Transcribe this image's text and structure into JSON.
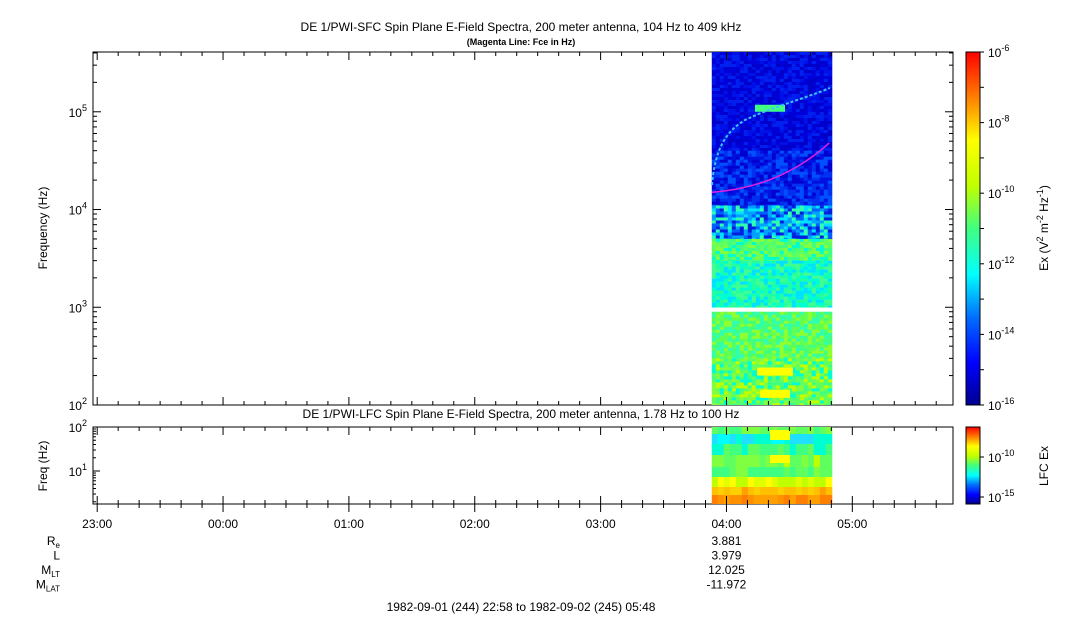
{
  "chart_data": [
    {
      "type": "heatmap",
      "title": "DE 1/PWI-SFC  Spin Plane E-Field Spectra, 200 meter antenna, 104 Hz to 409 kHz",
      "subtitle": "(Magenta Line: Fce in Hz)",
      "ylabel": "Frequency (Hz)",
      "yscale": "log",
      "ylim": [
        100,
        409000
      ],
      "ytick_exponents": [
        "2",
        "3",
        "4",
        "5"
      ],
      "colorbar_label": "Ex (V",
      "colorbar_label_sup1": "2",
      "colorbar_label_mid": " m",
      "colorbar_label_sup2": "-2",
      "colorbar_label_mid2": " Hz",
      "colorbar_label_sup3": "-1",
      "colorbar_label_end": ")",
      "colorbar_scale": "log",
      "colorbar_range_exponents": [
        -16,
        -6
      ],
      "colorbar_tick_exponents": [
        "-6",
        "-8",
        "-10",
        "-12",
        "-14",
        "-16"
      ],
      "data_time_range": [
        "03:53",
        "04:49"
      ],
      "gap_frequency_range_hz": [
        1000,
        900
      ],
      "fce_line": {
        "start_time": "03:53",
        "start_hz": 15000,
        "end_time": "04:49",
        "end_hz": 48000,
        "color": "#e020e0"
      }
    },
    {
      "type": "heatmap",
      "title": "DE 1/PWI-LFC  Spin Plane E-Field Spectra, 200 meter antenna, 1.78 Hz to 100 Hz",
      "ylabel": "Freq (Hz)",
      "yscale": "log",
      "ylim": [
        1.78,
        100
      ],
      "ytick_labels": [
        {
          "base": "10",
          "exp": "2"
        },
        {
          "base": "10",
          "exp": "1"
        }
      ],
      "colorbar_label": "LFC Ex",
      "colorbar_tick_exponents": [
        "-10",
        "-15"
      ],
      "data_time_range": [
        "03:53",
        "04:49"
      ]
    }
  ],
  "x_axis": {
    "tick_labels": [
      "23:00",
      "00:00",
      "01:00",
      "02:00",
      "03:00",
      "04:00",
      "05:00"
    ],
    "range": [
      "22:58",
      "05:48"
    ]
  },
  "ephemeris": {
    "rows": [
      {
        "label": "R",
        "sub": "e",
        "value": "3.881"
      },
      {
        "label": "L",
        "sub": "",
        "value": "3.979"
      },
      {
        "label": "M",
        "sub": "LT",
        "value": "12.025"
      },
      {
        "label": "M",
        "sub": "LAT",
        "value": "-11.972"
      }
    ]
  },
  "time_range_label": "1982-09-01 (244) 22:58 to 1982-09-02 (245) 05:48"
}
